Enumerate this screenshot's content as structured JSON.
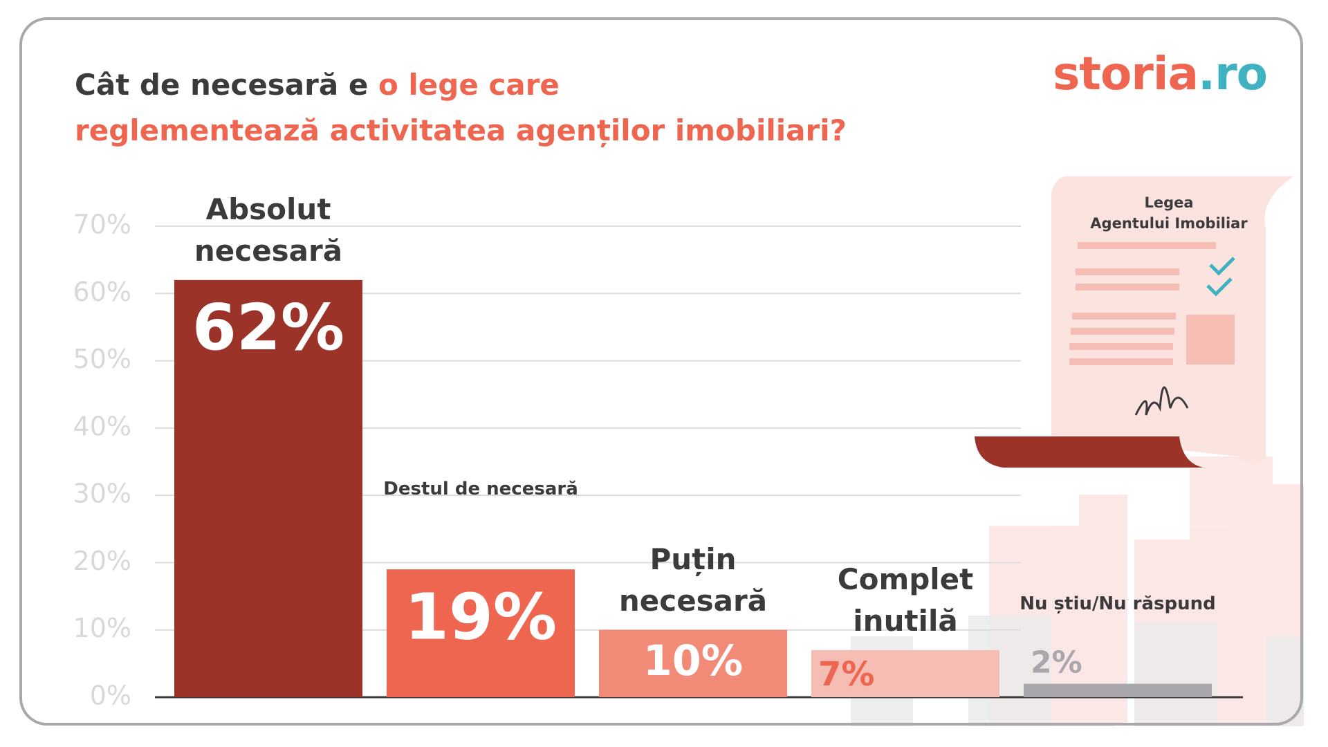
{
  "header": {
    "title_parts": [
      "Cât de necesară e",
      "o lege care",
      "reglementează activitatea agenților imobiliari?"
    ],
    "logo_parts": [
      "storia",
      ".ro"
    ]
  },
  "illustration": {
    "lines": [
      "Legea",
      "Agentului Imobiliar"
    ]
  },
  "chart_data": {
    "type": "bar",
    "categories": [
      "Absolut necesară",
      "Destul de necesară",
      "Puțin necesară",
      "Complet inutilă",
      "Nu știu/Nu răspund"
    ],
    "values": [
      62,
      19,
      10,
      7,
      2
    ],
    "value_labels": [
      "62%",
      "19%",
      "10%",
      "7%",
      "2%"
    ],
    "colors": [
      "#9b3329",
      "#ef6650",
      "#f28a78",
      "#f6bdb4",
      "#a9a7ab"
    ],
    "value_label_colors": [
      "#ffffff",
      "#ffffff",
      "#ffffff",
      "#ef6650",
      "#a9a7ab"
    ],
    "ylim": [
      0,
      70
    ],
    "yticks": [
      {
        "value": 0,
        "label": "0%"
      },
      {
        "value": 10,
        "label": "10%"
      },
      {
        "value": 20,
        "label": "20%"
      },
      {
        "value": 30,
        "label": "30%"
      },
      {
        "value": 40,
        "label": "40%"
      },
      {
        "value": 50,
        "label": "50%"
      },
      {
        "value": 60,
        "label": "60%"
      },
      {
        "value": 70,
        "label": "70%"
      }
    ],
    "grid": true
  }
}
